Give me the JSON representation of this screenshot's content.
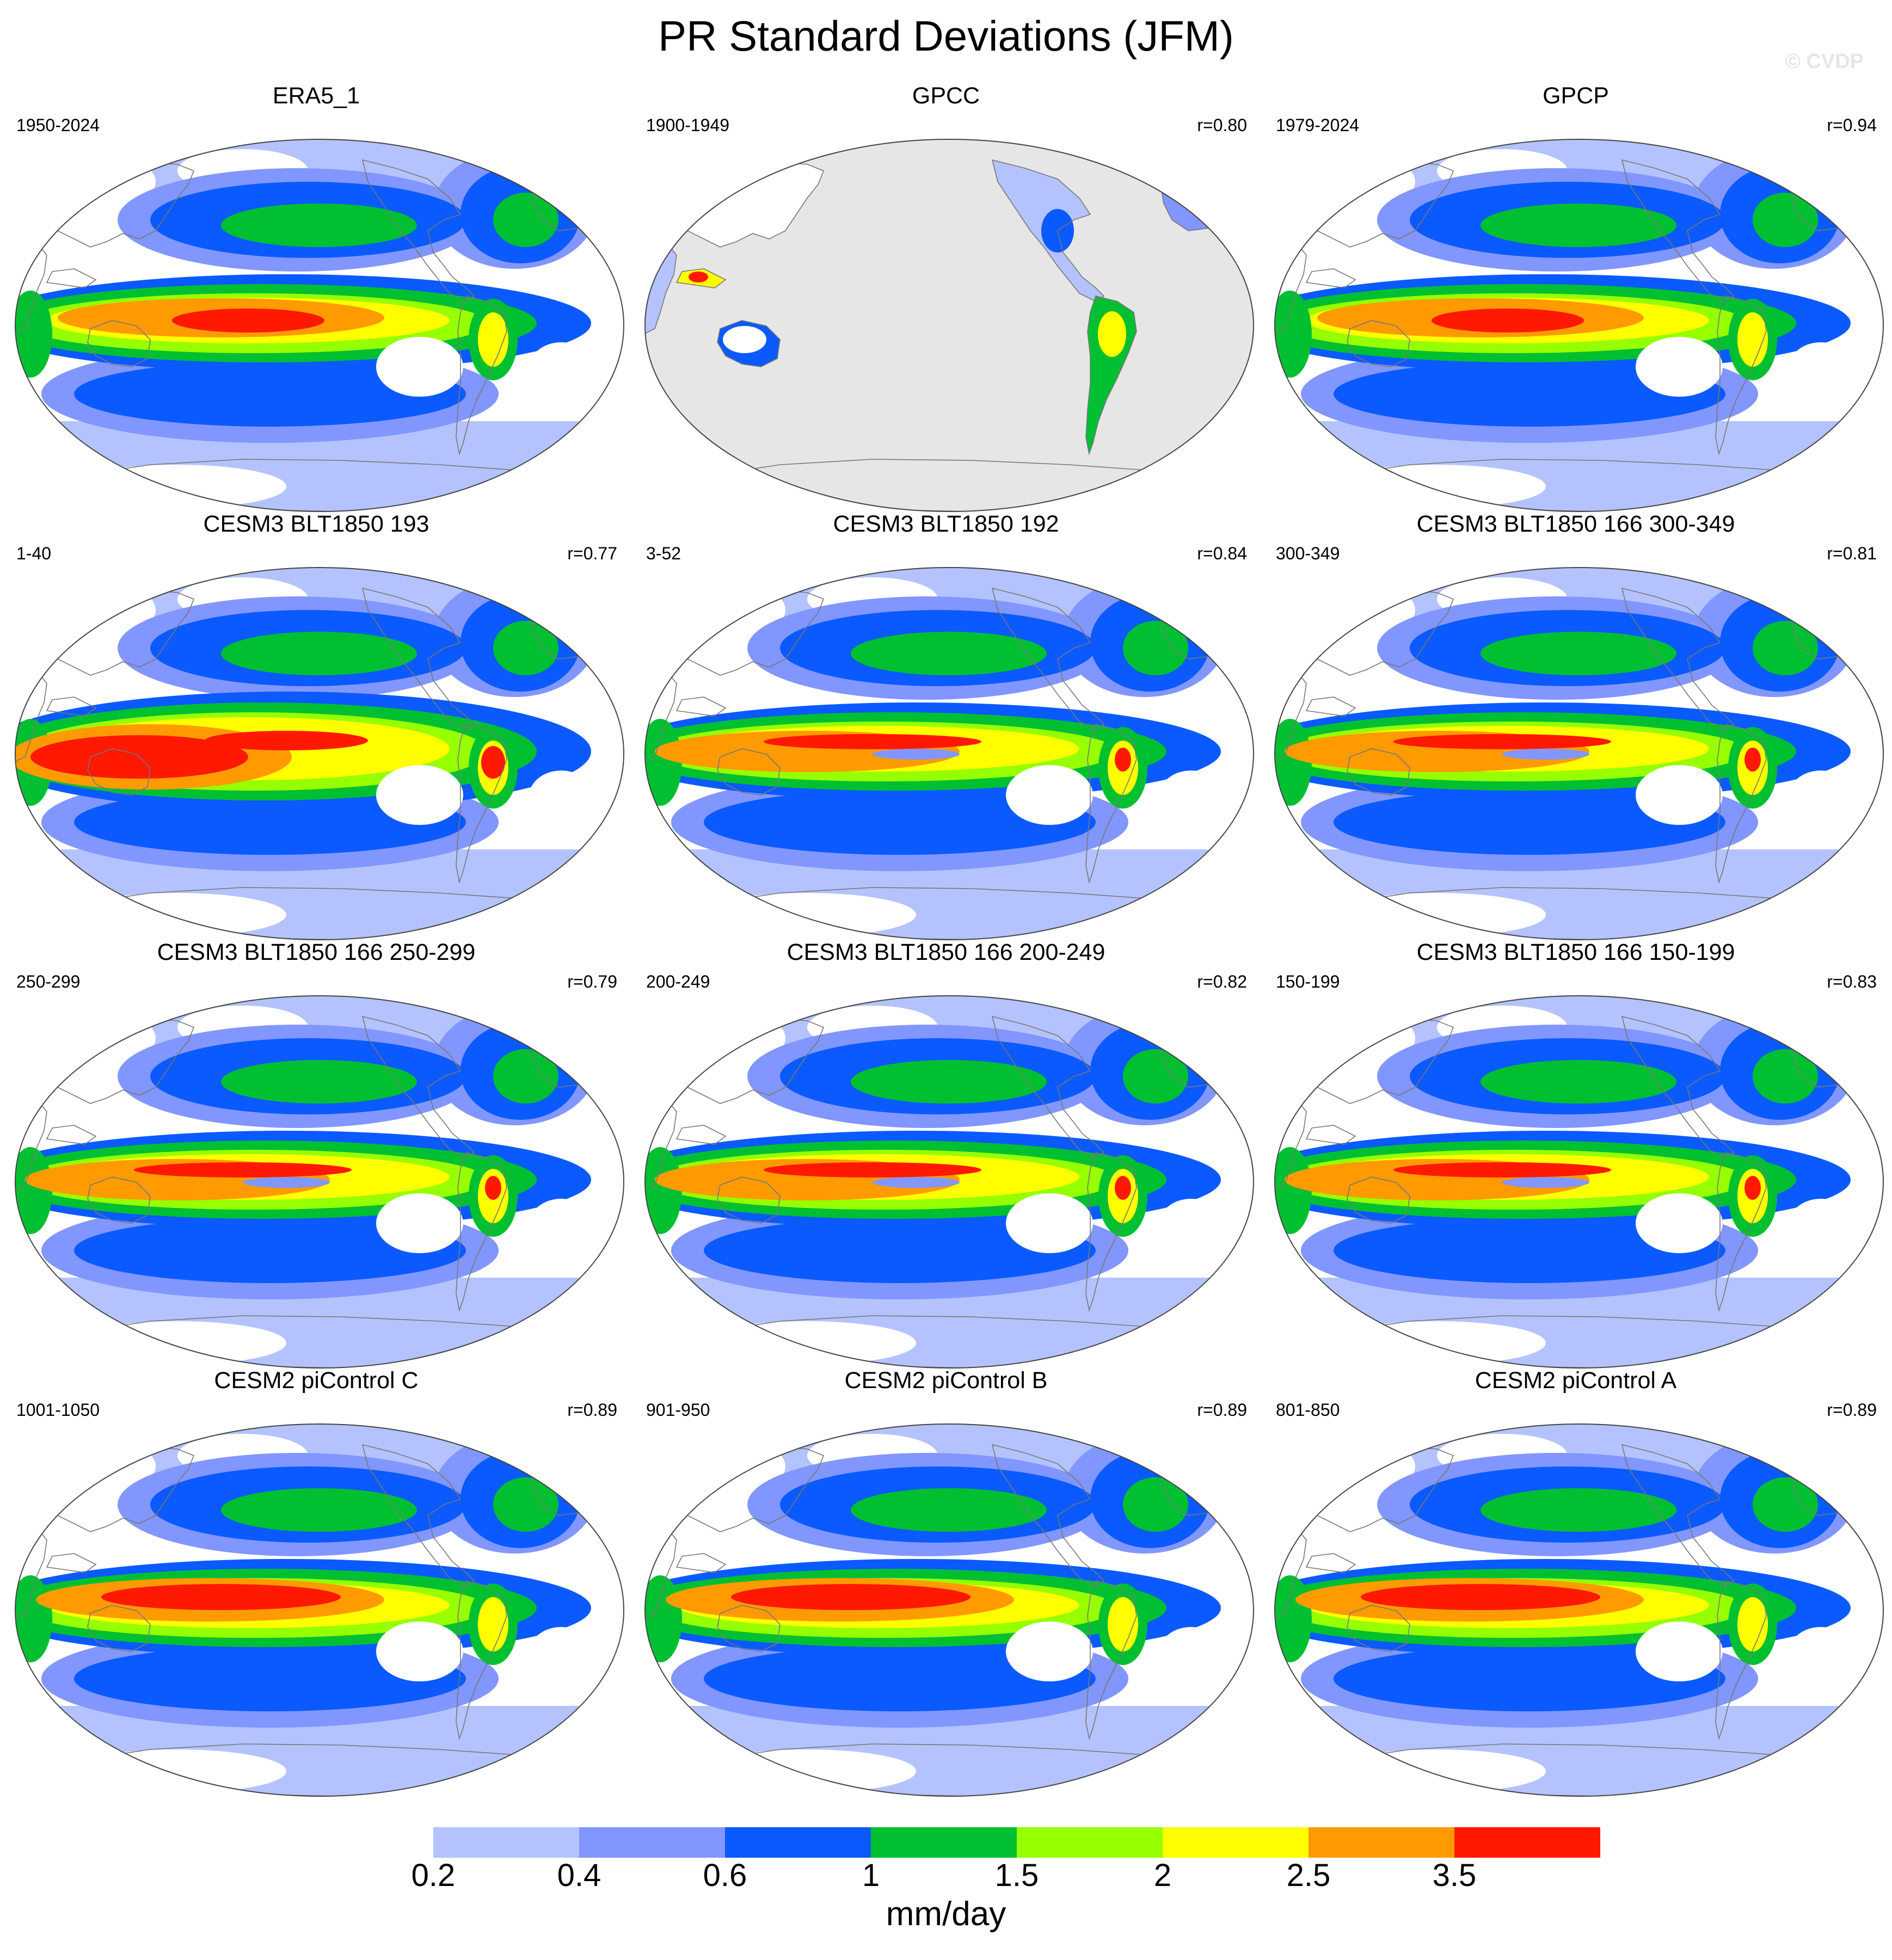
{
  "title": "PR Standard Deviations (JFM)",
  "watermark": "© CVDP",
  "colors": {
    "bins": [
      "#ffffff",
      "#b4c3ff",
      "#8296ff",
      "#0a5aff",
      "#00c032",
      "#96ff00",
      "#ffff00",
      "#ff9b00",
      "#ff1900"
    ],
    "missing": "#e6e6e6",
    "coastline": "#777777"
  },
  "colorbar": {
    "labels": [
      "0.2",
      "0.4",
      "0.6",
      "1",
      "1.5",
      "2",
      "2.5",
      "3.5"
    ],
    "units": "mm/day"
  },
  "panels": [
    {
      "title": "ERA5_1",
      "years": "1950-2024",
      "r": "",
      "style": "obs"
    },
    {
      "title": "GPCC",
      "years": "1900-1949",
      "r": "r=0.80",
      "style": "land"
    },
    {
      "title": "GPCP",
      "years": "1979-2024",
      "r": "r=0.94",
      "style": "obs"
    },
    {
      "title": "CESM3 BLT1850 193",
      "years": "1-40",
      "r": "r=0.77",
      "style": "cesm3wide"
    },
    {
      "title": "CESM3 BLT1850 192",
      "years": "3-52",
      "r": "r=0.84",
      "style": "cesm3"
    },
    {
      "title": "CESM3 BLT1850 166 300-349",
      "years": "300-349",
      "r": "r=0.81",
      "style": "cesm3"
    },
    {
      "title": "CESM3 BLT1850 166 250-299",
      "years": "250-299",
      "r": "r=0.79",
      "style": "cesm3"
    },
    {
      "title": "CESM3 BLT1850 166 200-249",
      "years": "200-249",
      "r": "r=0.82",
      "style": "cesm3"
    },
    {
      "title": "CESM3 BLT1850 166 150-199",
      "years": "150-199",
      "r": "r=0.83",
      "style": "cesm3"
    },
    {
      "title": "CESM2 piControl C",
      "years": "1001-1050",
      "r": "r=0.89",
      "style": "cesm2"
    },
    {
      "title": "CESM2 piControl B",
      "years": "901-950",
      "r": "r=0.89",
      "style": "cesm2"
    },
    {
      "title": "CESM2 piControl A",
      "years": "801-850",
      "r": "r=0.89",
      "style": "cesm2"
    }
  ]
}
